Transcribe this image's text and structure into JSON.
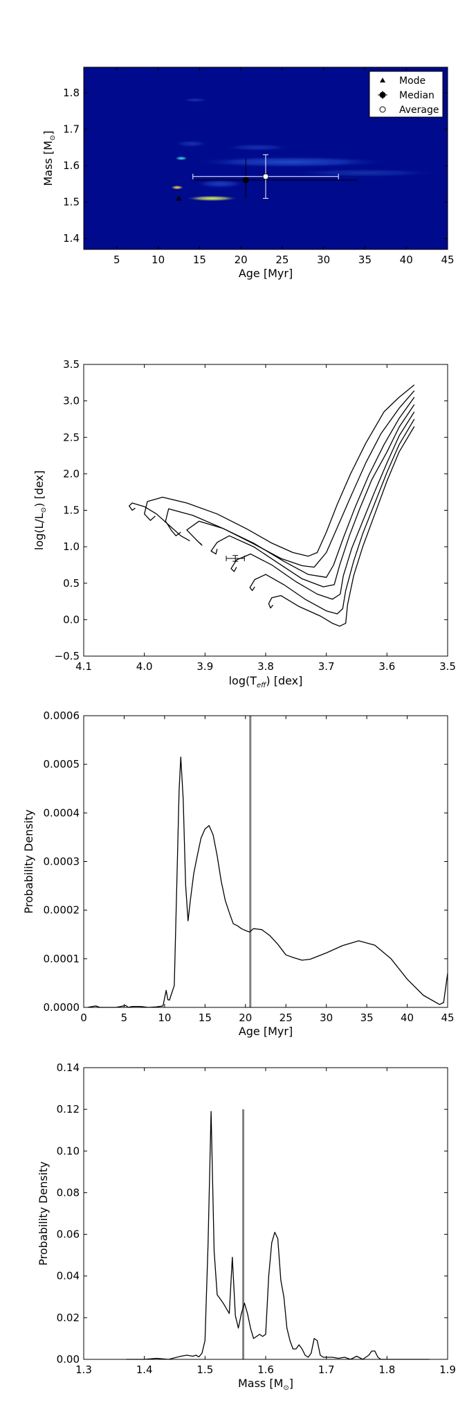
{
  "chart_data": [
    {
      "type": "heatmap",
      "xlabel": "Age [Myr]",
      "ylabel": "Mass [M",
      "ylabel_suffix": "]",
      "ylabel_sub": "⊙",
      "xlim": [
        1,
        45
      ],
      "ylim": [
        1.37,
        1.87
      ],
      "xticks": [
        5,
        10,
        15,
        20,
        25,
        30,
        35,
        40,
        45
      ],
      "yticks": [
        1.4,
        1.5,
        1.6,
        1.7,
        1.8
      ],
      "legend_position": "top-right",
      "legend": [
        "Mode",
        "Median",
        "Average"
      ],
      "background_color": "#000a8c",
      "blobs": [
        {
          "x": 16.5,
          "y": 1.51,
          "rx": 3.2,
          "ry": 0.008,
          "peak": "#d9f05a",
          "level": 1.0
        },
        {
          "x": 12.3,
          "y": 1.54,
          "rx": 0.8,
          "ry": 0.006,
          "peak": "#f5d94a",
          "level": 0.9
        },
        {
          "x": 12.8,
          "y": 1.62,
          "rx": 0.8,
          "ry": 0.006,
          "peak": "#3fd6e6",
          "level": 0.7
        },
        {
          "x": 26.0,
          "y": 1.61,
          "rx": 12.0,
          "ry": 0.016,
          "peak": "#1f48c8",
          "level": 0.35
        },
        {
          "x": 17.5,
          "y": 1.55,
          "rx": 3.0,
          "ry": 0.012,
          "peak": "#1a3cc0",
          "level": 0.3
        },
        {
          "x": 14.5,
          "y": 1.78,
          "rx": 1.6,
          "ry": 0.006,
          "peak": "#1a2fb8",
          "level": 0.25
        },
        {
          "x": 14.0,
          "y": 1.66,
          "rx": 2.0,
          "ry": 0.01,
          "peak": "#1530b0",
          "level": 0.2
        },
        {
          "x": 22.0,
          "y": 1.65,
          "rx": 4.0,
          "ry": 0.01,
          "peak": "#1530b0",
          "level": 0.18
        },
        {
          "x": 35.0,
          "y": 1.58,
          "rx": 9.0,
          "ry": 0.012,
          "peak": "#1230a8",
          "level": 0.18
        }
      ],
      "mode": {
        "x": 12.5,
        "y": 1.51
      },
      "median": {
        "x": 20.6,
        "y": 1.56,
        "xerr": [
          6.2,
          13.5
        ],
        "yerr": [
          0.05,
          0.06
        ]
      },
      "average": {
        "x": 23.0,
        "y": 1.57,
        "xerr": [
          8.8,
          8.8
        ],
        "yerr": [
          0.06,
          0.06
        ]
      }
    },
    {
      "type": "line",
      "xlabel": "log(T",
      "xlabel_sub": "eff",
      "xlabel_suffix": ") [dex]",
      "ylabel": "log(L/L",
      "ylabel_sub": "⊙",
      "ylabel_suffix": ") [dex]",
      "xlim": [
        4.1,
        3.5
      ],
      "ylim": [
        -0.5,
        3.5
      ],
      "xticks": [
        4.1,
        4.0,
        3.9,
        3.8,
        3.7,
        3.6,
        3.5
      ],
      "xtick_labels": [
        "4.1",
        "4.0",
        "3.9",
        "3.8",
        "3.7",
        "3.6",
        "3.5"
      ],
      "yticks": [
        -0.5,
        0.0,
        0.5,
        1.0,
        1.5,
        2.0,
        2.5,
        3.0,
        3.5
      ],
      "ytick_labels": [
        "−0.5",
        "0.0",
        "0.5",
        "1.0",
        "1.5",
        "2.0",
        "2.5",
        "3.0",
        "3.5"
      ],
      "star": {
        "x": 3.85,
        "y": 0.84,
        "xerr": 0.015,
        "yerr": 0.04
      },
      "series": [
        {
          "values": [
            [
              3.788,
              0.2
            ],
            [
              3.792,
              0.16
            ],
            [
              3.795,
              0.22
            ],
            [
              3.79,
              0.3
            ],
            [
              3.775,
              0.33
            ],
            [
              3.745,
              0.18
            ],
            [
              3.71,
              0.05
            ],
            [
              3.69,
              -0.05
            ],
            [
              3.678,
              -0.09
            ],
            [
              3.668,
              -0.05
            ],
            [
              3.665,
              0.2
            ],
            [
              3.655,
              0.6
            ],
            [
              3.64,
              1.0
            ],
            [
              3.62,
              1.45
            ],
            [
              3.6,
              1.9
            ],
            [
              3.58,
              2.3
            ],
            [
              3.555,
              2.65
            ]
          ]
        },
        {
          "values": [
            [
              3.818,
              0.45
            ],
            [
              3.822,
              0.4
            ],
            [
              3.826,
              0.44
            ],
            [
              3.818,
              0.55
            ],
            [
              3.8,
              0.62
            ],
            [
              3.77,
              0.48
            ],
            [
              3.735,
              0.28
            ],
            [
              3.7,
              0.12
            ],
            [
              3.682,
              0.08
            ],
            [
              3.673,
              0.15
            ],
            [
              3.668,
              0.4
            ],
            [
              3.655,
              0.8
            ],
            [
              3.64,
              1.18
            ],
            [
              3.62,
              1.6
            ],
            [
              3.6,
              2.02
            ],
            [
              3.58,
              2.4
            ],
            [
              3.555,
              2.75
            ]
          ]
        },
        {
          "values": [
            [
              3.848,
              0.72
            ],
            [
              3.852,
              0.66
            ],
            [
              3.857,
              0.7
            ],
            [
              3.848,
              0.82
            ],
            [
              3.825,
              0.9
            ],
            [
              3.79,
              0.75
            ],
            [
              3.75,
              0.52
            ],
            [
              3.715,
              0.35
            ],
            [
              3.69,
              0.28
            ],
            [
              3.677,
              0.35
            ],
            [
              3.672,
              0.6
            ],
            [
              3.658,
              0.98
            ],
            [
              3.64,
              1.35
            ],
            [
              3.62,
              1.76
            ],
            [
              3.6,
              2.15
            ],
            [
              3.58,
              2.52
            ],
            [
              3.555,
              2.85
            ]
          ]
        },
        {
          "values": [
            [
              3.88,
              0.97
            ],
            [
              3.882,
              0.9
            ],
            [
              3.89,
              0.94
            ],
            [
              3.88,
              1.06
            ],
            [
              3.86,
              1.15
            ],
            [
              3.82,
              1.0
            ],
            [
              3.78,
              0.78
            ],
            [
              3.74,
              0.56
            ],
            [
              3.705,
              0.45
            ],
            [
              3.687,
              0.48
            ],
            [
              3.678,
              0.75
            ],
            [
              3.662,
              1.15
            ],
            [
              3.645,
              1.52
            ],
            [
              3.625,
              1.92
            ],
            [
              3.6,
              2.3
            ],
            [
              3.58,
              2.64
            ],
            [
              3.555,
              2.95
            ]
          ]
        },
        {
          "values": [
            [
              3.908,
              1.05
            ],
            [
              3.905,
              1.02
            ],
            [
              3.915,
              1.1
            ],
            [
              3.93,
              1.23
            ],
            [
              3.91,
              1.35
            ],
            [
              3.87,
              1.25
            ],
            [
              3.82,
              1.05
            ],
            [
              3.77,
              0.8
            ],
            [
              3.73,
              0.62
            ],
            [
              3.7,
              0.58
            ],
            [
              3.688,
              0.75
            ],
            [
              3.672,
              1.12
            ],
            [
              3.652,
              1.55
            ],
            [
              3.63,
              1.98
            ],
            [
              3.605,
              2.4
            ],
            [
              3.58,
              2.76
            ],
            [
              3.555,
              3.05
            ]
          ]
        },
        {
          "values": [
            [
              3.94,
              1.2
            ],
            [
              3.948,
              1.15
            ],
            [
              3.955,
              1.22
            ],
            [
              3.965,
              1.35
            ],
            [
              3.96,
              1.52
            ],
            [
              3.92,
              1.43
            ],
            [
              3.87,
              1.25
            ],
            [
              3.82,
              1.04
            ],
            [
              3.775,
              0.84
            ],
            [
              3.74,
              0.74
            ],
            [
              3.72,
              0.72
            ],
            [
              3.7,
              0.92
            ],
            [
              3.68,
              1.3
            ],
            [
              3.658,
              1.72
            ],
            [
              3.635,
              2.15
            ],
            [
              3.61,
              2.55
            ],
            [
              3.58,
              2.9
            ],
            [
              3.555,
              3.14
            ]
          ]
        },
        {
          "values": [
            [
              3.982,
              1.42
            ],
            [
              3.99,
              1.36
            ],
            [
              4.0,
              1.45
            ],
            [
              3.995,
              1.62
            ],
            [
              3.97,
              1.68
            ],
            [
              3.93,
              1.6
            ],
            [
              3.88,
              1.45
            ],
            [
              3.83,
              1.24
            ],
            [
              3.79,
              1.05
            ],
            [
              3.755,
              0.92
            ],
            [
              3.73,
              0.87
            ],
            [
              3.715,
              0.92
            ],
            [
              3.7,
              1.2
            ],
            [
              3.682,
              1.58
            ],
            [
              3.66,
              2.0
            ],
            [
              3.635,
              2.42
            ],
            [
              3.605,
              2.85
            ],
            [
              3.58,
              3.05
            ],
            [
              3.555,
              3.22
            ]
          ]
        },
        {
          "values": [
            [
              4.015,
              1.53
            ],
            [
              4.02,
              1.5
            ],
            [
              4.025,
              1.56
            ],
            [
              4.02,
              1.6
            ],
            [
              4.0,
              1.55
            ],
            [
              3.98,
              1.45
            ],
            [
              3.96,
              1.3
            ],
            [
              3.94,
              1.15
            ],
            [
              3.925,
              1.08
            ]
          ]
        }
      ]
    },
    {
      "type": "line",
      "xlabel": "Age [Myr]",
      "ylabel": "Probability Density",
      "xlim": [
        0,
        45
      ],
      "ylim": [
        0,
        0.0006
      ],
      "xticks": [
        0,
        5,
        10,
        15,
        20,
        25,
        30,
        35,
        40,
        45
      ],
      "yticks": [
        0,
        0.0001,
        0.0002,
        0.0003,
        0.0004,
        0.0005,
        0.0006
      ],
      "ytick_labels": [
        "0.0000",
        "0.0001",
        "0.0002",
        "0.0003",
        "0.0004",
        "0.0005",
        "0.0006"
      ],
      "vline": 20.6,
      "x": [
        0.5,
        1.5,
        2,
        4,
        5.2,
        5.5,
        6,
        7,
        8,
        9,
        9.8,
        10.2,
        10.4,
        10.6,
        10.8,
        11.2,
        11.5,
        11.8,
        12.0,
        12.3,
        12.6,
        12.9,
        13.2,
        13.6,
        14.0,
        14.5,
        15.0,
        15.5,
        16.0,
        16.5,
        17.0,
        17.5,
        18.0,
        18.5,
        19.0,
        19.5,
        20.0,
        20.5,
        21.0,
        21.5,
        22.0,
        23.0,
        24.0,
        25.0,
        26.0,
        27.0,
        28.0,
        30.0,
        32.0,
        34.0,
        36.0,
        38.0,
        40.0,
        42.0,
        44.0,
        44.5,
        45.0
      ],
      "values": [
        0,
        3e-06,
        0,
        0,
        4e-06,
        0,
        2e-06,
        2e-06,
        0,
        1e-06,
        3e-06,
        3.5e-05,
        1.6e-05,
        1.5e-05,
        2.5e-05,
        4.5e-05,
        0.000245,
        0.000448,
        0.000515,
        0.000428,
        0.000252,
        0.000178,
        0.000222,
        0.000275,
        0.000308,
        0.000348,
        0.000367,
        0.000374,
        0.000355,
        0.000312,
        0.00026,
        0.00022,
        0.000195,
        0.000172,
        0.000168,
        0.000162,
        0.000158,
        0.000155,
        0.000162,
        0.000161,
        0.00016,
        0.000148,
        0.00013,
        0.000108,
        0.000102,
        9.7e-05,
        9.9e-05,
        0.000112,
        0.000127,
        0.000137,
        0.000128,
        0.0001,
        5.8e-05,
        2.5e-05,
        6e-06,
        1e-05,
        7e-05
      ]
    },
    {
      "type": "line",
      "xlabel": "Mass [M",
      "xlabel_sub": "⊙",
      "xlabel_suffix": "]",
      "ylabel": "Probability Density",
      "xlim": [
        1.3,
        1.9
      ],
      "ylim": [
        0,
        0.14
      ],
      "xticks": [
        1.3,
        1.4,
        1.5,
        1.6,
        1.7,
        1.8,
        1.9
      ],
      "yticks": [
        0,
        0.02,
        0.04,
        0.06,
        0.08,
        0.1,
        0.12,
        0.14
      ],
      "ytick_labels": [
        "0.00",
        "0.02",
        "0.04",
        "0.06",
        "0.08",
        "0.10",
        "0.12",
        "0.14"
      ],
      "vline": 1.563,
      "x": [
        1.37,
        1.4,
        1.42,
        1.44,
        1.46,
        1.47,
        1.48,
        1.485,
        1.49,
        1.495,
        1.5,
        1.505,
        1.51,
        1.515,
        1.52,
        1.53,
        1.54,
        1.545,
        1.55,
        1.555,
        1.56,
        1.565,
        1.57,
        1.575,
        1.58,
        1.585,
        1.59,
        1.595,
        1.6,
        1.605,
        1.61,
        1.615,
        1.62,
        1.625,
        1.63,
        1.635,
        1.64,
        1.645,
        1.65,
        1.655,
        1.66,
        1.665,
        1.67,
        1.675,
        1.68,
        1.685,
        1.69,
        1.695,
        1.7,
        1.71,
        1.72,
        1.73,
        1.74,
        1.75,
        1.76,
        1.77,
        1.775,
        1.78,
        1.785,
        1.79,
        1.8,
        1.82,
        1.85,
        1.87
      ],
      "values": [
        0,
        0,
        0.0005,
        0,
        0.0015,
        0.002,
        0.0015,
        0.002,
        0.0012,
        0.003,
        0.009,
        0.055,
        0.119,
        0.052,
        0.031,
        0.027,
        0.022,
        0.049,
        0.021,
        0.015,
        0.022,
        0.027,
        0.022,
        0.015,
        0.01,
        0.011,
        0.012,
        0.011,
        0.012,
        0.04,
        0.056,
        0.061,
        0.058,
        0.038,
        0.03,
        0.015,
        0.009,
        0.005,
        0.005,
        0.007,
        0.005,
        0.002,
        0.001,
        0.003,
        0.01,
        0.009,
        0.002,
        0.001,
        0.001,
        0.001,
        0.0005,
        0.001,
        0,
        0.0015,
        0,
        0.002,
        0.004,
        0.004,
        0.001,
        0,
        0,
        0,
        0,
        0
      ]
    }
  ]
}
